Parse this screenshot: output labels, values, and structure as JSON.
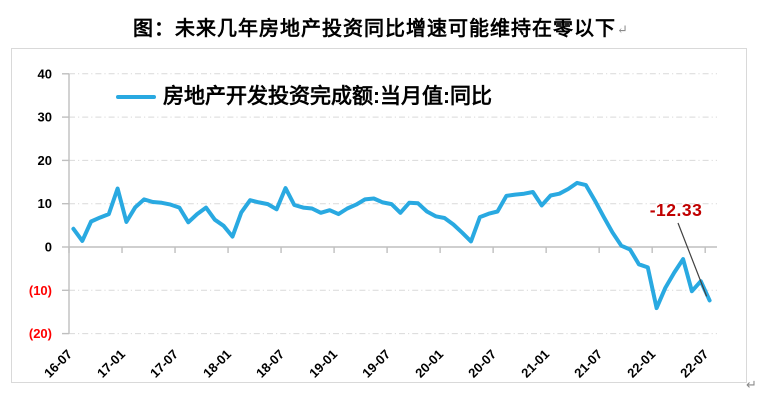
{
  "title": {
    "text": "图：未来几年房地产投资同比增速可能维持在零以下",
    "return_mark": "↵"
  },
  "legend": {
    "label": "房地产开发投资完成额:当月值:同比"
  },
  "annotation": {
    "value": "-12.33"
  },
  "trailing_return_mark": "↵",
  "colors": {
    "line": "#29a9e1",
    "annotation_text": "#c00000",
    "negative_tick_label": "#ff0000",
    "tick_label": "#000000",
    "axis": "#bfbfbf",
    "gridline": "#d9d9d9",
    "leader_line": "#404040",
    "frame_border": "#d9d9d9"
  },
  "chart_data": {
    "type": "line",
    "series_name": "房地产开发投资完成额:当月值:同比",
    "x": [
      "16-07",
      "16-08",
      "16-09",
      "16-10",
      "16-11",
      "16-12",
      "17-01",
      "17-02",
      "17-03",
      "17-04",
      "17-05",
      "17-06",
      "17-07",
      "17-08",
      "17-09",
      "17-10",
      "17-11",
      "17-12",
      "18-01",
      "18-02",
      "18-03",
      "18-04",
      "18-05",
      "18-06",
      "18-07",
      "18-08",
      "18-09",
      "18-10",
      "18-11",
      "18-12",
      "19-01",
      "19-02",
      "19-03",
      "19-04",
      "19-05",
      "19-06",
      "19-07",
      "19-08",
      "19-09",
      "19-10",
      "19-11",
      "19-12",
      "20-01",
      "20-02",
      "20-03",
      "20-04",
      "20-05",
      "20-06",
      "20-07",
      "20-08",
      "20-09",
      "20-10",
      "20-11",
      "20-12",
      "21-01",
      "21-02",
      "21-03",
      "21-04",
      "21-05",
      "21-06",
      "21-07",
      "21-08",
      "21-09",
      "21-10",
      "21-11",
      "21-12",
      "22-01",
      "22-02",
      "22-03",
      "22-04",
      "22-05",
      "22-06",
      "22-07"
    ],
    "values": [
      4.2,
      1.4,
      5.9,
      6.8,
      7.6,
      13.5,
      5.8,
      9.2,
      11.0,
      10.4,
      10.2,
      9.8,
      9.1,
      5.7,
      7.6,
      9.1,
      6.3,
      4.9,
      2.4,
      8.0,
      10.8,
      10.3,
      9.9,
      8.7,
      13.6,
      9.7,
      9.1,
      8.9,
      7.9,
      8.5,
      7.6,
      8.9,
      9.8,
      11.0,
      11.2,
      10.3,
      9.9,
      7.9,
      10.2,
      10.1,
      8.2,
      7.1,
      6.7,
      5.2,
      3.3,
      1.3,
      6.9,
      7.7,
      8.2,
      11.8,
      12.1,
      12.3,
      12.7,
      9.6,
      11.9,
      12.3,
      13.4,
      14.8,
      14.3,
      10.8,
      7.0,
      3.4,
      0.3,
      -0.6,
      -4.0,
      -4.7,
      -14.1,
      -9.4,
      -5.9,
      -2.8,
      -10.2,
      -7.9,
      -12.33
    ],
    "x_tick_labels": [
      "16-07",
      "17-01",
      "17-07",
      "18-01",
      "18-07",
      "19-01",
      "19-07",
      "20-01",
      "20-07",
      "21-01",
      "21-07",
      "22-01",
      "22-07"
    ],
    "x_tick_every_n_points": 6,
    "y_ticks": [
      40,
      30,
      20,
      10,
      0,
      -10,
      -20
    ],
    "y_tick_labels": [
      "40",
      "30",
      "20",
      "10",
      "0",
      "(10)",
      "(20)"
    ],
    "ylim": [
      -20,
      40
    ],
    "grid": "horizontal dash-dot, no gridline at zero (solid axis)",
    "legend_position": "top-center",
    "annotation": {
      "text": "-12.33",
      "target_x": "22-07",
      "target_value": -12.33
    }
  }
}
